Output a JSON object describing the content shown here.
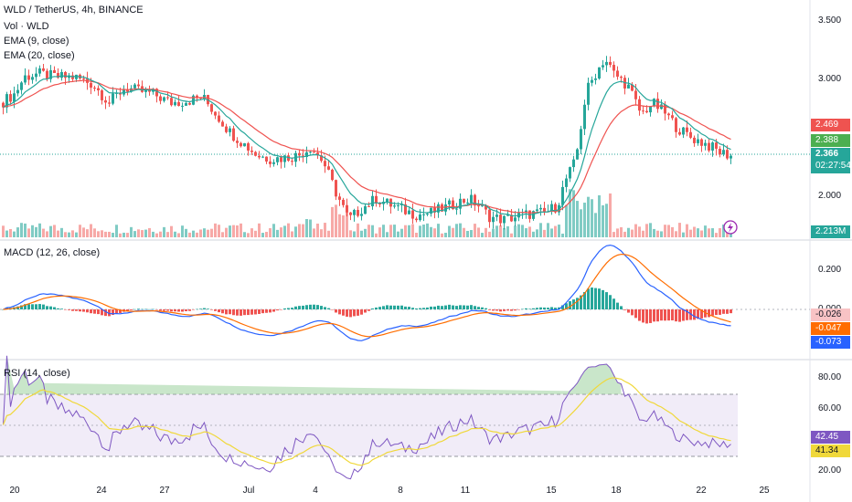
{
  "header": {
    "symbol_line": "WLD / TetherUS, 4h, BINANCE",
    "indicators": [
      "Vol · WLD",
      "EMA (9, close)",
      "EMA (20, close)"
    ]
  },
  "price_axis": {
    "ticks": [
      "3.500",
      "3.000",
      "2.000"
    ],
    "tags": {
      "ema20": "2.469",
      "ema9": "2.388",
      "last_price": "2.366",
      "countdown": "02:27:54",
      "volume": "2.213M"
    }
  },
  "macd": {
    "label": "MACD (12, 26, close)",
    "ticks": [
      "0.200",
      "0.000"
    ],
    "tags": {
      "histogram": "-0.026",
      "signal": "-0.047",
      "macd": "-0.073"
    }
  },
  "rsi": {
    "label": "RSI (14, close)",
    "ticks": [
      "80.00",
      "60.00",
      "20.00"
    ],
    "tags": {
      "rsi": "42.45",
      "rsi_ma": "41.34"
    }
  },
  "time_axis": {
    "labels": [
      "20",
      "24",
      "27",
      "Jul",
      "4",
      "8",
      "11",
      "15",
      "18",
      "22",
      "25"
    ]
  },
  "colors": {
    "up": "#26a69a",
    "down": "#ef5350",
    "ema9": "#26a69a",
    "ema20": "#ef5350",
    "macd": "#2962ff",
    "signal": "#ff6d00",
    "rsi": "#7e57c2",
    "rsi_ma": "#f0d83a",
    "rsi_band": "#ede7f6"
  }
}
